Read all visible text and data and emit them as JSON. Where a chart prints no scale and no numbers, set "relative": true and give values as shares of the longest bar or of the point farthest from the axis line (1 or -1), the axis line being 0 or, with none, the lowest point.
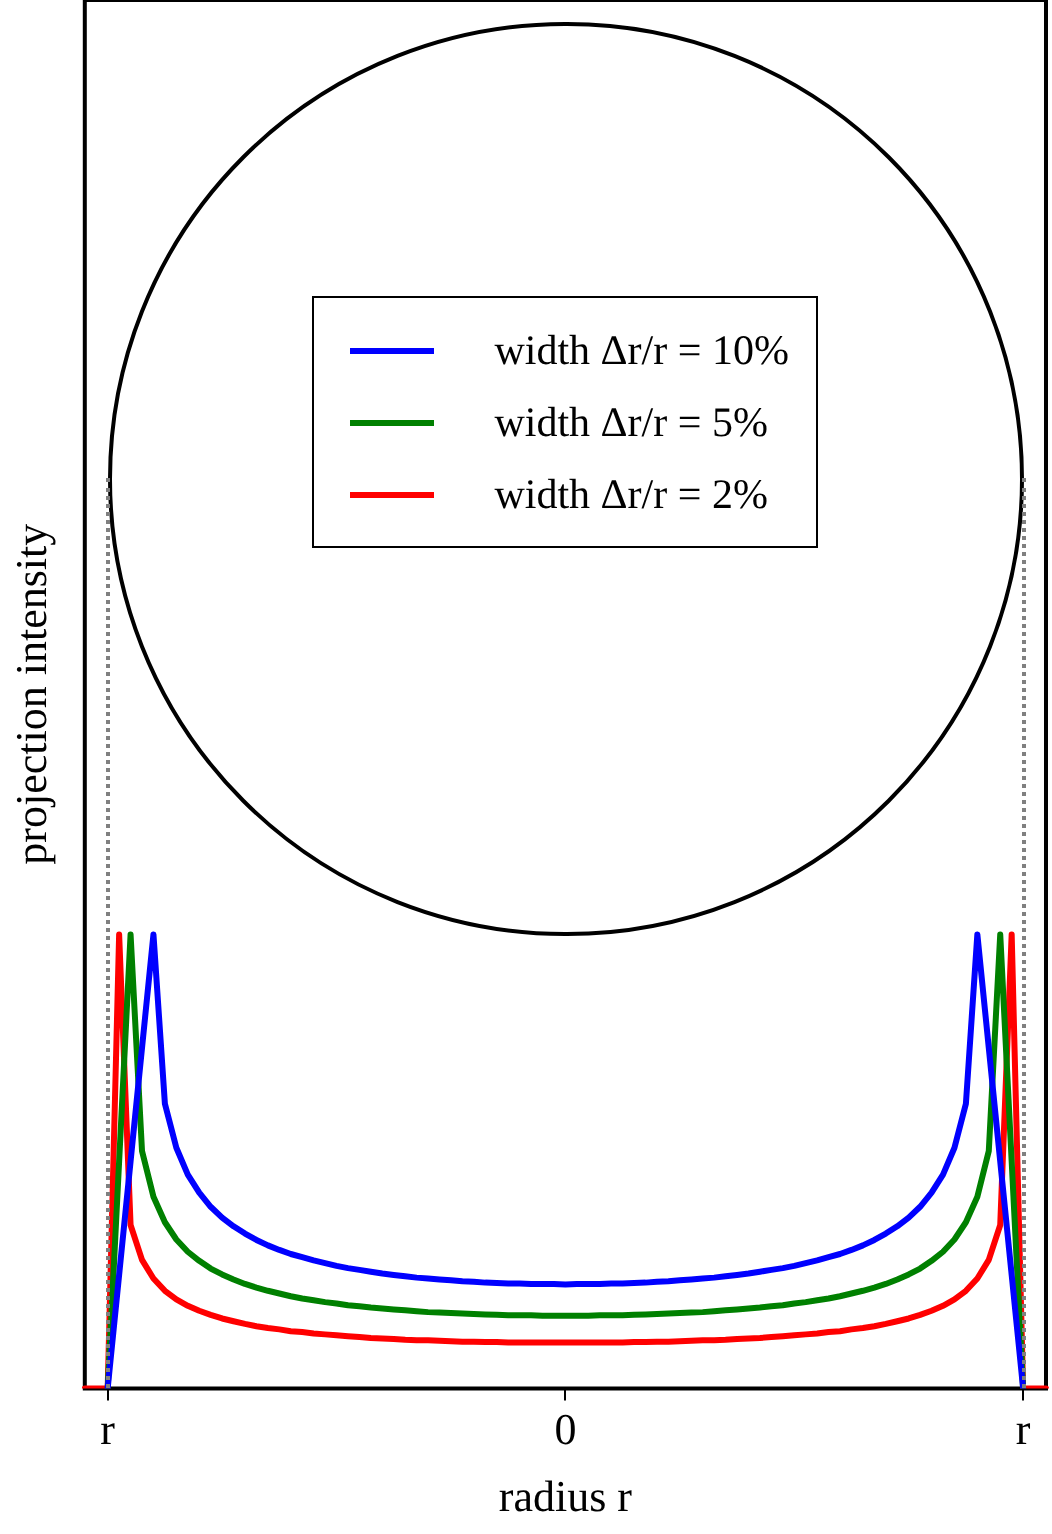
{
  "chart_data": {
    "type": "line",
    "relative": true,
    "xlabel": "radius r",
    "ylabel": "projection intensity",
    "categories": [
      null,
      null,
      "r",
      null,
      null,
      null,
      null,
      null,
      null,
      null,
      null,
      null,
      null,
      null,
      null,
      null,
      null,
      null,
      null,
      null,
      null,
      null,
      null,
      null,
      null,
      null,
      null,
      null,
      null,
      null,
      null,
      null,
      null,
      null,
      null,
      null,
      null,
      null,
      null,
      null,
      null,
      null,
      "0",
      null,
      null,
      null,
      null,
      null,
      null,
      null,
      null,
      null,
      null,
      null,
      null,
      null,
      null,
      null,
      null,
      null,
      null,
      null,
      null,
      null,
      null,
      null,
      null,
      null,
      null,
      null,
      null,
      null,
      null,
      null,
      null,
      null,
      null,
      null,
      null,
      null,
      null,
      null,
      "r",
      null,
      null
    ],
    "legend": "top",
    "marker": "none",
    "line_style": "solid",
    "series": [
      {
        "name": "width Δr/r = 10%",
        "color": "#0000ff",
        "values": [
          null,
          null,
          0,
          0.25,
          0.5,
          0.75,
          1,
          0.627,
          0.53,
          0.471,
          0.431,
          0.4,
          0.376,
          0.357,
          0.341,
          0.327,
          0.315,
          0.305,
          0.296,
          0.289,
          0.282,
          0.276,
          0.27,
          0.265,
          0.261,
          0.257,
          0.253,
          0.25,
          0.247,
          0.244,
          0.242,
          0.24,
          0.238,
          0.236,
          0.235,
          0.233,
          0.232,
          0.231,
          0.231,
          0.23,
          0.23,
          0.23,
          0.229,
          0.23,
          0.23,
          0.23,
          0.231,
          0.231,
          0.232,
          0.233,
          0.235,
          0.236,
          0.238,
          0.24,
          0.242,
          0.244,
          0.247,
          0.25,
          0.253,
          0.257,
          0.261,
          0.265,
          0.27,
          0.276,
          0.282,
          0.289,
          0.296,
          0.305,
          0.315,
          0.327,
          0.341,
          0.357,
          0.376,
          0.4,
          0.431,
          0.471,
          0.53,
          0.627,
          1,
          0.75,
          0.5,
          0.25,
          0,
          null,
          null
        ]
      },
      {
        "name": "width Δr/r = 5%",
        "color": "#008000",
        "values": [
          null,
          null,
          0,
          0.5,
          1,
          0.523,
          0.422,
          0.366,
          0.328,
          0.301,
          0.281,
          0.264,
          0.251,
          0.24,
          0.23,
          0.222,
          0.215,
          0.209,
          0.203,
          0.198,
          0.194,
          0.19,
          0.187,
          0.183,
          0.181,
          0.178,
          0.176,
          0.174,
          0.172,
          0.17,
          0.168,
          0.167,
          0.166,
          0.165,
          0.164,
          0.163,
          0.162,
          0.161,
          0.161,
          0.161,
          0.16,
          0.16,
          0.16,
          0.16,
          0.16,
          0.161,
          0.161,
          0.161,
          0.162,
          0.163,
          0.164,
          0.165,
          0.166,
          0.167,
          0.168,
          0.17,
          0.172,
          0.174,
          0.176,
          0.178,
          0.181,
          0.183,
          0.187,
          0.19,
          0.194,
          0.198,
          0.203,
          0.209,
          0.215,
          0.222,
          0.23,
          0.24,
          0.251,
          0.264,
          0.281,
          0.301,
          0.328,
          0.366,
          0.422,
          0.523,
          1,
          0.5,
          0,
          null,
          null
        ]
      },
      {
        "name": "width Δr/r = 2%",
        "color": "#ff0000",
        "values": [
          0,
          0,
          0,
          1,
          0.36,
          0.283,
          0.242,
          0.215,
          0.196,
          0.182,
          0.171,
          0.162,
          0.154,
          0.148,
          0.142,
          0.137,
          0.133,
          0.13,
          0.126,
          0.124,
          0.121,
          0.119,
          0.117,
          0.115,
          0.113,
          0.111,
          0.11,
          0.109,
          0.107,
          0.106,
          0.106,
          0.105,
          0.104,
          0.103,
          0.103,
          0.102,
          0.102,
          0.101,
          0.101,
          0.101,
          0.101,
          0.101,
          0.101,
          0.101,
          0.101,
          0.101,
          0.101,
          0.101,
          0.102,
          0.102,
          0.103,
          0.103,
          0.104,
          0.105,
          0.106,
          0.106,
          0.107,
          0.109,
          0.11,
          0.111,
          0.113,
          0.115,
          0.117,
          0.119,
          0.121,
          0.124,
          0.126,
          0.13,
          0.133,
          0.137,
          0.142,
          0.148,
          0.154,
          0.162,
          0.171,
          0.182,
          0.196,
          0.215,
          0.242,
          0.283,
          0.36,
          1,
          0,
          0,
          0
        ]
      }
    ]
  }
}
